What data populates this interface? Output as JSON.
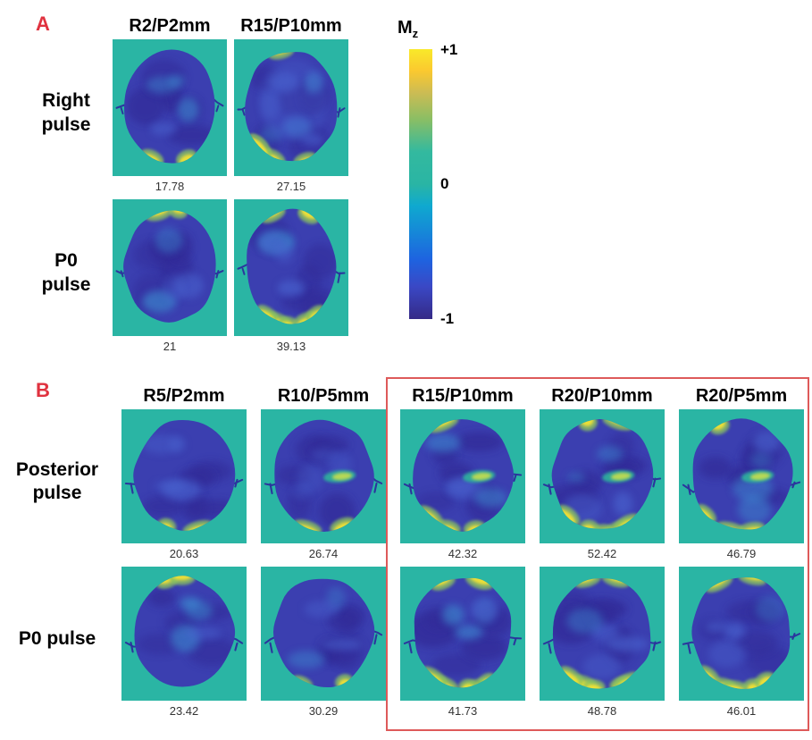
{
  "panelA": {
    "label": "A",
    "col_headers": [
      "R2/P2mm",
      "R15/P10mm"
    ],
    "rows": [
      {
        "lines": [
          "Right",
          "pulse"
        ],
        "cells": [
          {
            "value": "17.78",
            "seed": 3,
            "edge": "low"
          },
          {
            "value": "27.15",
            "seed": 7,
            "edge": "mid",
            "light": true
          }
        ]
      },
      {
        "lines": [
          "P0",
          "pulse"
        ],
        "cells": [
          {
            "value": "21",
            "seed": 11,
            "edge": "low",
            "top": true
          },
          {
            "value": "39.13",
            "seed": 5,
            "edge": "high"
          }
        ]
      }
    ],
    "colorbar": {
      "title": "M",
      "title_sub": "z",
      "ticks": [
        "+1",
        "0",
        "-1"
      ]
    }
  },
  "panelB": {
    "label": "B",
    "col_headers": [
      "R5/P2mm",
      "R10/P5mm",
      "R15/P10mm",
      "R20/P10mm",
      "R20/P5mm"
    ],
    "highlighted_headers": [
      "R15/P10mm",
      "R20/P10mm",
      "R20/P5mm"
    ],
    "rows": [
      {
        "lines": [
          "Posterior",
          "pulse"
        ],
        "cells": [
          {
            "value": "20.63",
            "seed": 21,
            "edge": "low"
          },
          {
            "value": "26.74",
            "seed": 22,
            "edge": "low",
            "streak": true
          },
          {
            "value": "42.32",
            "seed": 23,
            "edge": "mid",
            "streak": true
          },
          {
            "value": "52.42",
            "seed": 24,
            "edge": "high",
            "streak": true
          },
          {
            "value": "46.79",
            "seed": 25,
            "edge": "mid",
            "streak": true
          }
        ]
      },
      {
        "lines": [
          "P0 pulse"
        ],
        "cells": [
          {
            "value": "23.42",
            "seed": 26,
            "edge": "low",
            "top": true
          },
          {
            "value": "30.29",
            "seed": 27,
            "edge": "low"
          },
          {
            "value": "41.73",
            "seed": 28,
            "edge": "high"
          },
          {
            "value": "48.78",
            "seed": 29,
            "edge": "high"
          },
          {
            "value": "46.01",
            "seed": 30,
            "edge": "high"
          }
        ]
      }
    ]
  },
  "colors": {
    "background": "#ffffff",
    "teal_bg": "#2ab5a4",
    "brain_base": "#3b3fb0",
    "brain_dark": "#312c97",
    "brain_light1": "#4a63cf",
    "brain_light2": "#3e8fd2",
    "vessel": "#2c2f9d",
    "hot_yellow": "#f2e235",
    "hot_green": "#8cc55e",
    "streak_teal": "#2fb49c",
    "streak_yellow": "#cfe04a",
    "accent_red": "#e0323f",
    "box_red": "#de5a5a"
  }
}
